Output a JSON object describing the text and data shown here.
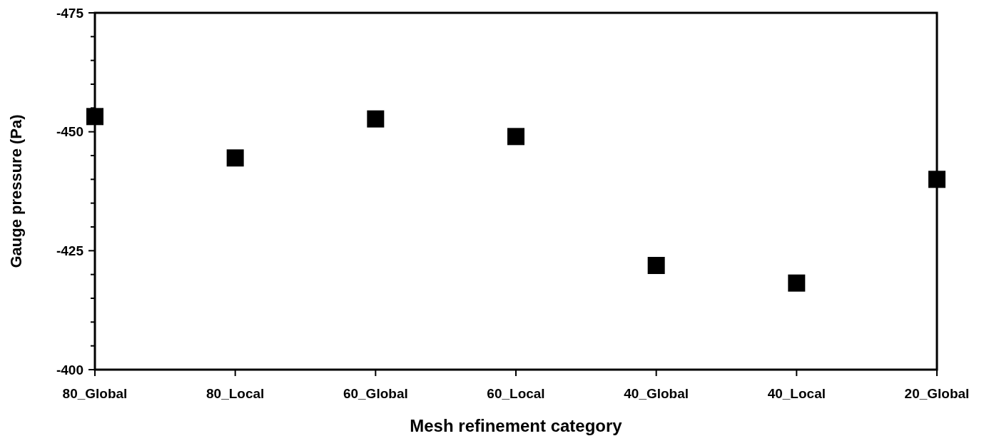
{
  "chart_data": {
    "type": "scatter",
    "xlabel": "Mesh refinement category",
    "ylabel": "Gauge pressure (Pa)",
    "categories": [
      "80_Global",
      "80_Local",
      "60_Global",
      "60_Local",
      "40_Global",
      "40_Local",
      "20_Global"
    ],
    "series": [
      {
        "color": "#000000",
        "values": [
          -453.2,
          -444.5,
          -452.7,
          -449.0,
          -421.9,
          -418.2,
          -440.0
        ]
      }
    ],
    "ylim": [
      -400,
      -475
    ],
    "yticks": [
      -400,
      {
        "value": -405,
        "label": null
      },
      {
        "value": -410,
        "label": null
      },
      {
        "value": -415,
        "label": null
      },
      {
        "value": -420,
        "label": null
      },
      -425,
      {
        "value": -430,
        "label": null
      },
      {
        "value": -435,
        "label": null
      },
      {
        "value": -440,
        "label": null
      },
      {
        "value": -445,
        "label": null
      },
      -450,
      {
        "value": -455,
        "label": null
      },
      {
        "value": -460,
        "label": null
      },
      {
        "value": -465,
        "label": null
      },
      {
        "value": -470,
        "label": null
      },
      -475
    ],
    "marker": "square",
    "grid": false
  }
}
